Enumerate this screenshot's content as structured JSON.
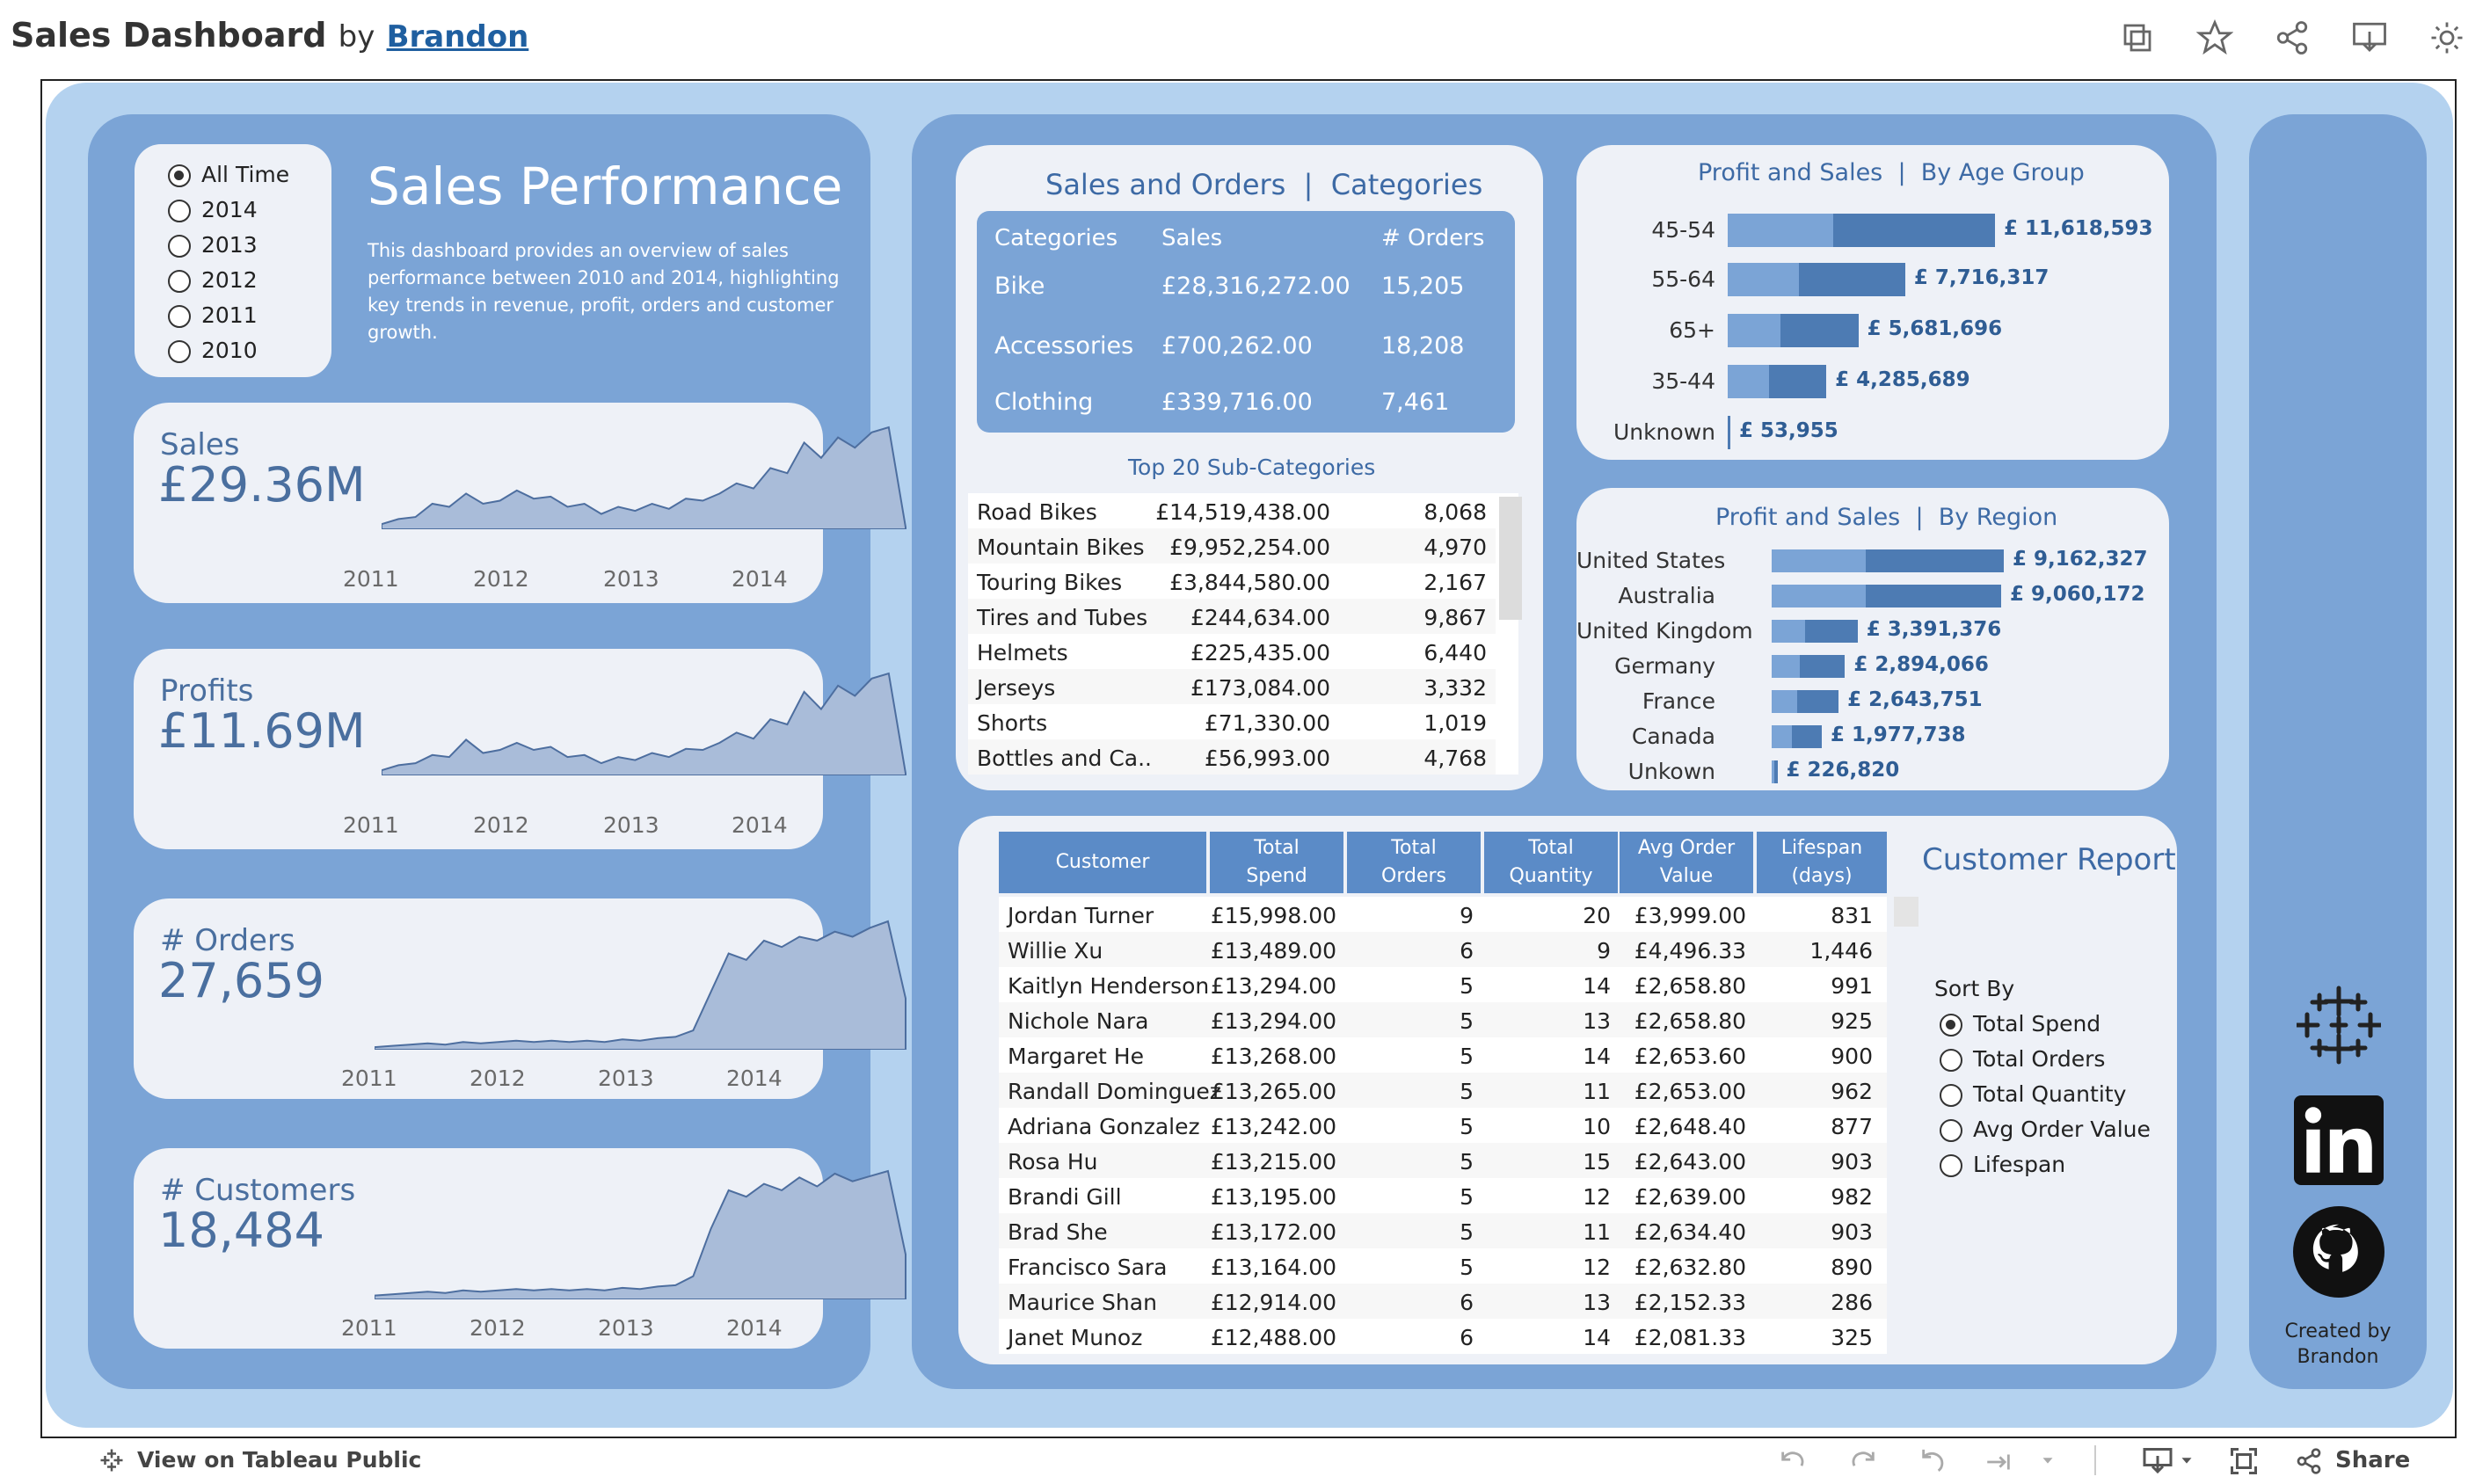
{
  "header": {
    "title": "Sales Dashboard",
    "by": "by",
    "author": "Brandon"
  },
  "filters": {
    "options": [
      "All Time",
      "2014",
      "2013",
      "2012",
      "2011",
      "2010"
    ],
    "selected": "All Time"
  },
  "intro": {
    "heading": "Sales Performance",
    "description_lines": [
      "This dashboard provides an overview of sales",
      "performance between 2010 and 2014, highlighting",
      "key trends in revenue, profit, orders and customer",
      "growth."
    ]
  },
  "kpis": [
    {
      "label": "Sales",
      "value": "£29.36M",
      "years": [
        "2011",
        "2012",
        "2013",
        "2014"
      ]
    },
    {
      "label": "Profits",
      "value": "£11.69M",
      "years": [
        "2011",
        "2012",
        "2013",
        "2014"
      ]
    },
    {
      "label": "# Orders",
      "value": "27,659",
      "years": [
        "2011",
        "2012",
        "2013",
        "2014"
      ]
    },
    {
      "label": "# Customers",
      "value": "18,484",
      "years": [
        "2011",
        "2012",
        "2013",
        "2014"
      ]
    }
  ],
  "categories": {
    "title_left": "Sales and Orders",
    "title_sep": "|",
    "title_right": "Categories",
    "headers": [
      "Categories",
      "Sales",
      "# Orders"
    ],
    "rows": [
      [
        "Bike",
        "£28,316,272.00",
        "15,205"
      ],
      [
        "Accessories",
        "£700,262.00",
        "18,208"
      ],
      [
        "Clothing",
        "£339,716.00",
        "7,461"
      ]
    ]
  },
  "subcategories": {
    "title": "Top 20 Sub-Categories",
    "rows": [
      [
        "Road Bikes",
        "£14,519,438.00",
        "8,068"
      ],
      [
        "Mountain Bikes",
        "£9,952,254.00",
        "4,970"
      ],
      [
        "Touring Bikes",
        "£3,844,580.00",
        "2,167"
      ],
      [
        "Tires and Tubes",
        "£244,634.00",
        "9,867"
      ],
      [
        "Helmets",
        "£225,435.00",
        "6,440"
      ],
      [
        "Jerseys",
        "£173,084.00",
        "3,332"
      ],
      [
        "Shorts",
        "£71,330.00",
        "1,019"
      ],
      [
        "Bottles and Ca..",
        "£56,993.00",
        "4,768"
      ]
    ]
  },
  "age_group": {
    "title_left": "Profit and Sales",
    "title_sep": "|",
    "title_right": "By Age Group",
    "rows": [
      {
        "label": "45-54",
        "value": "£ 11,618,593",
        "sales": 11618593,
        "profit": 4600000
      },
      {
        "label": "55-64",
        "value": "£ 7,716,317",
        "sales": 7716317,
        "profit": 3100000
      },
      {
        "label": "65+",
        "value": "£ 5,681,696",
        "sales": 5681696,
        "profit": 2300000
      },
      {
        "label": "35-44",
        "value": "£ 4,285,689",
        "sales": 4285689,
        "profit": 1800000
      },
      {
        "label": "Unknown",
        "value": "£ 53,955",
        "sales": 53955,
        "profit": 20000
      }
    ]
  },
  "region": {
    "title_left": "Profit and Sales",
    "title_sep": "|",
    "title_right": "By Region",
    "rows": [
      {
        "label": "United States",
        "value": "£ 9,162,327",
        "sales": 9162327,
        "profit": 3700000
      },
      {
        "label": "Australia",
        "value": "£ 9,060,172",
        "sales": 9060172,
        "profit": 3700000
      },
      {
        "label": "United Kingdom",
        "value": "£ 3,391,376",
        "sales": 3391376,
        "profit": 1300000
      },
      {
        "label": "Germany",
        "value": "£ 2,894,066",
        "sales": 2894066,
        "profit": 1100000
      },
      {
        "label": "France",
        "value": "£ 2,643,751",
        "sales": 2643751,
        "profit": 1000000
      },
      {
        "label": "Canada",
        "value": "£ 1,977,738",
        "sales": 1977738,
        "profit": 780000
      },
      {
        "label": "Unkown",
        "value": "£ 226,820",
        "sales": 226820,
        "profit": 90000
      }
    ]
  },
  "customer_report": {
    "title": "Customer Report",
    "headers": [
      [
        "Customer"
      ],
      [
        "Total",
        "Spend"
      ],
      [
        "Total",
        "Orders"
      ],
      [
        "Total",
        "Quantity"
      ],
      [
        "Avg Order",
        "Value"
      ],
      [
        "Lifespan",
        "(days)"
      ]
    ],
    "rows": [
      [
        "Jordan Turner",
        "£15,998.00",
        "9",
        "20",
        "£3,999.00",
        "831"
      ],
      [
        "Willie Xu",
        "£13,489.00",
        "6",
        "9",
        "£4,496.33",
        "1,446"
      ],
      [
        "Kaitlyn Henderson",
        "£13,294.00",
        "5",
        "14",
        "£2,658.80",
        "991"
      ],
      [
        "Nichole Nara",
        "£13,294.00",
        "5",
        "13",
        "£2,658.80",
        "925"
      ],
      [
        "Margaret He",
        "£13,268.00",
        "5",
        "14",
        "£2,653.60",
        "900"
      ],
      [
        "Randall Dominguez",
        "£13,265.00",
        "5",
        "11",
        "£2,653.00",
        "962"
      ],
      [
        "Adriana Gonzalez",
        "£13,242.00",
        "5",
        "10",
        "£2,648.40",
        "877"
      ],
      [
        "Rosa Hu",
        "£13,215.00",
        "5",
        "15",
        "£2,643.00",
        "903"
      ],
      [
        "Brandi Gill",
        "£13,195.00",
        "5",
        "12",
        "£2,639.00",
        "982"
      ],
      [
        "Brad She",
        "£13,172.00",
        "5",
        "11",
        "£2,634.40",
        "903"
      ],
      [
        "Francisco Sara",
        "£13,164.00",
        "5",
        "12",
        "£2,632.80",
        "890"
      ],
      [
        "Maurice Shan",
        "£12,914.00",
        "6",
        "13",
        "£2,152.33",
        "286"
      ],
      [
        "Janet Munoz",
        "£12,488.00",
        "6",
        "14",
        "£2,081.33",
        "325"
      ]
    ],
    "sort_by": {
      "label": "Sort By",
      "options": [
        "Total Spend",
        "Total Orders",
        "Total Quantity",
        "Avg Order Value",
        "Lifespan"
      ],
      "selected": "Total Spend"
    }
  },
  "credits": {
    "line1": "Created by",
    "line2": "Brandon"
  },
  "footer": {
    "view_label": "View on Tableau Public",
    "share_label": "Share"
  },
  "colors": {
    "panel": "#7ba4d6",
    "background": "#b4d2ef",
    "card": "#eef1f7",
    "bar_dark": "#4d7bb3",
    "bar_light": "#7ba4d6",
    "header_text": "#3d6aa5"
  }
}
